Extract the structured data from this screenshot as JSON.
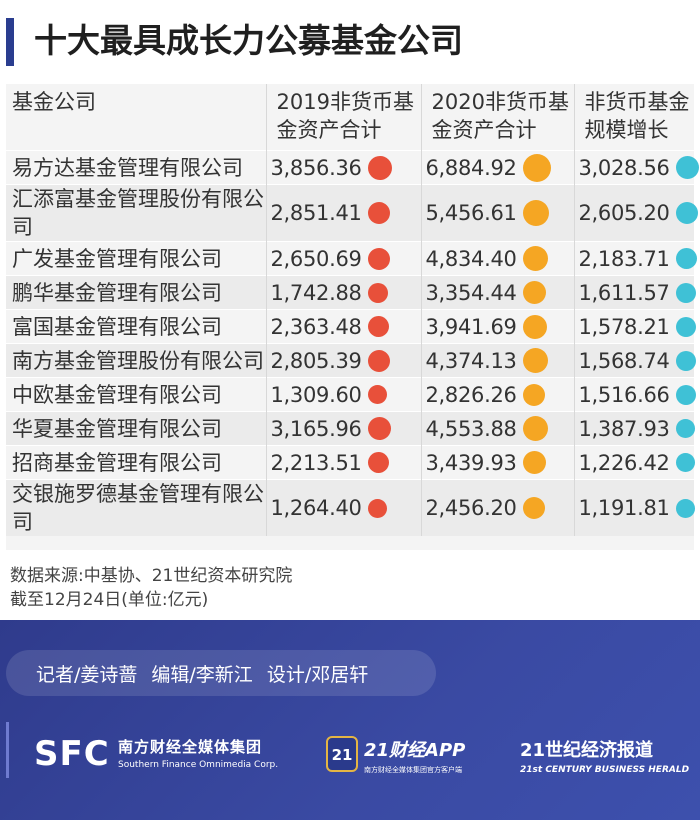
{
  "title": "十大最具成长力公募基金公司",
  "chart_data": {
    "type": "table",
    "title": "十大最具成长力公募基金公司",
    "columns": [
      "基金公司",
      "2019非货币基金资产合计",
      "2020非货币基金资产合计",
      "非货币基金规模增长"
    ],
    "rows": [
      {
        "company": "易方达基金管理有限公司",
        "v2019": "3,856.36",
        "v2020": "6,884.92",
        "growth": "3,028.56"
      },
      {
        "company": "汇添富基金管理股份有限公司",
        "v2019": "2,851.41",
        "v2020": "5,456.61",
        "growth": "2,605.20"
      },
      {
        "company": "广发基金管理有限公司",
        "v2019": "2,650.69",
        "v2020": "4,834.40",
        "growth": "2,183.71"
      },
      {
        "company": "鹏华基金管理有限公司",
        "v2019": "1,742.88",
        "v2020": "3,354.44",
        "growth": "1,611.57"
      },
      {
        "company": "富国基金管理有限公司",
        "v2019": "2,363.48",
        "v2020": "3,941.69",
        "growth": "1,578.21"
      },
      {
        "company": "南方基金管理股份有限公司",
        "v2019": "2,805.39",
        "v2020": "4,374.13",
        "growth": "1,568.74"
      },
      {
        "company": "中欧基金管理有限公司",
        "v2019": "1,309.60",
        "v2020": "2,826.26",
        "growth": "1,516.66"
      },
      {
        "company": "华夏基金管理有限公司",
        "v2019": "3,165.96",
        "v2020": "4,553.88",
        "growth": "1,387.93"
      },
      {
        "company": "招商基金管理有限公司",
        "v2019": "2,213.51",
        "v2020": "3,439.93",
        "growth": "1,226.42"
      },
      {
        "company": "交银施罗德基金管理有限公司",
        "v2019": "1,264.40",
        "v2020": "2,456.20",
        "growth": "1,191.81"
      }
    ],
    "unit": "亿元",
    "dot_colors": {
      "v2019": "#e8503a",
      "v2020": "#f5a623",
      "growth": "#3fc1d6"
    }
  },
  "notes": {
    "source": "数据来源:中基协、21世纪资本研究院",
    "date_unit": "截至12月24日(单位:亿元)"
  },
  "footer": {
    "reporter": "记者/姜诗蔷",
    "editor": "编辑/李新江",
    "designer": "设计/邓居轩",
    "sfc_logo": "SFC",
    "sfc_cn": "南方财经全媒体集团",
    "sfc_en": "Southern Finance Omnimedia Corp.",
    "app_badge": "21",
    "app_name": "21财经APP",
    "app_sub": "南方财经全媒体集团官方客户端",
    "herald_cn": "21世纪经济报道",
    "herald_en": "21st CENTURY BUSINESS HERALD"
  },
  "colors": {
    "brand": "#2a3d8f",
    "footer_bg": "#3a4aa3"
  }
}
